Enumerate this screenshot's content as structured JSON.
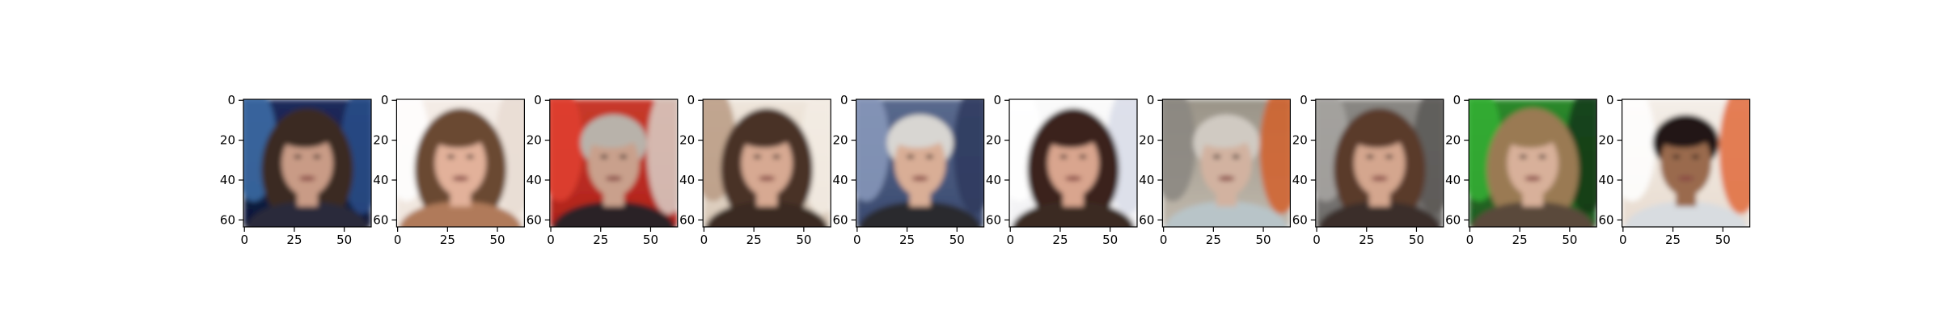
{
  "figure": {
    "panel_count": 10,
    "x_ticks": [
      "0",
      "25",
      "50"
    ],
    "y_ticks": [
      "0",
      "20",
      "40",
      "60"
    ],
    "x_tick_values": [
      0,
      25,
      50
    ],
    "y_tick_values": [
      0,
      20,
      40,
      60
    ],
    "image_size": 64,
    "panels": [
      {
        "subject": "woman with long dark hair, smiling",
        "bg_top": "#1e2a5c",
        "bg_bottom": "#0e1738",
        "side_left": "#3d6fa8",
        "side_right": "#2a4d8a",
        "hair": "#3b2a22",
        "skin": "#c99b86",
        "shirt": "#2a2a3a",
        "long_hair": true
      },
      {
        "subject": "woman with long light brown hair",
        "bg_top": "#f4ece6",
        "bg_bottom": "#f0e6de",
        "side_left": "#ffffff",
        "side_right": "#e8dcd2",
        "hair": "#6b4a33",
        "skin": "#e2b19a",
        "shirt": "#b07a5a",
        "long_hair": true
      },
      {
        "subject": "older man with gray hair, red background",
        "bg_top": "#c83a2a",
        "bg_bottom": "#b0221c",
        "side_left": "#e04030",
        "side_right": "#d8d0c8",
        "hair": "#b8b2aa",
        "skin": "#c9a08c",
        "shirt": "#2b2426",
        "long_hair": false
      },
      {
        "subject": "woman with long dark wavy hair",
        "bg_top": "#efe6dc",
        "bg_bottom": "#d9c9b8",
        "side_left": "#b89a82",
        "side_right": "#f3ece4",
        "hair": "#4a3326",
        "skin": "#d7a992",
        "shirt": "#3b2a22",
        "long_hair": true
      },
      {
        "subject": "older man with white hair, smiling",
        "bg_top": "#5a6a8e",
        "bg_bottom": "#3a4a70",
        "side_left": "#8a9abc",
        "side_right": "#2e3a5e",
        "hair": "#d8d6d2",
        "skin": "#d9ae96",
        "shirt": "#2c2a2e",
        "long_hair": false
      },
      {
        "subject": "woman with long dark hair, white background",
        "bg_top": "#fafafa",
        "bg_bottom": "#f2f2f4",
        "side_left": "#ffffff",
        "side_right": "#d8dce8",
        "hair": "#3a241c",
        "skin": "#d9a58e",
        "shirt": "#3a2a24",
        "long_hair": true
      },
      {
        "subject": "older person with light hair, orange background",
        "bg_top": "#9a9488",
        "bg_bottom": "#c0b8ac",
        "side_left": "#8a8680",
        "side_right": "#d2602a",
        "hair": "#d0cac2",
        "skin": "#d2b2a0",
        "shirt": "#b8c4c8",
        "long_hair": false
      },
      {
        "subject": "woman with brown hair, smiling",
        "bg_top": "#8a8884",
        "bg_bottom": "#6e6c6a",
        "side_left": "#a8a6a2",
        "side_right": "#5a5856",
        "hair": "#5a3a2a",
        "skin": "#d4a68e",
        "shirt": "#3a2e2a",
        "long_hair": true
      },
      {
        "subject": "woman with blonde hair, green background",
        "bg_top": "#2a8a2a",
        "bg_bottom": "#1e5a22",
        "side_left": "#34b034",
        "side_right": "#123818",
        "hair": "#9a7a52",
        "skin": "#d8b09a",
        "shirt": "#5a4a3a",
        "long_hair": true
      },
      {
        "subject": "man with dark hair and beard",
        "bg_top": "#f4eee8",
        "bg_bottom": "#e8dcd0",
        "side_left": "#ffffff",
        "side_right": "#e06a3a",
        "hair": "#221814",
        "skin": "#9a6a4e",
        "shirt": "#d8dce0",
        "long_hair": false
      }
    ]
  }
}
